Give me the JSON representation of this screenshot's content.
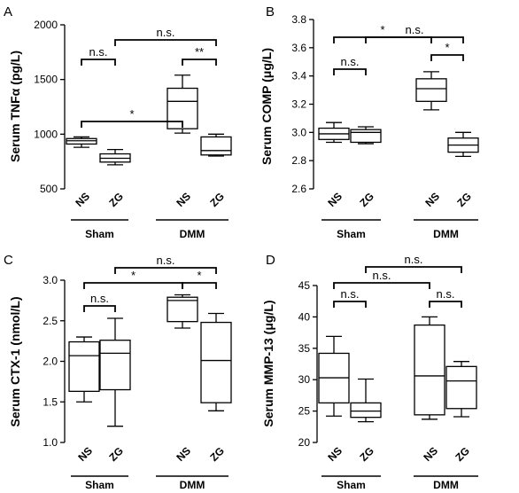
{
  "chart_data": [
    {
      "panel": "A",
      "type": "boxplot",
      "ylabel": "Serum TNFα (pg/L)",
      "ylim": [
        500,
        2000
      ],
      "yticks": [
        500,
        1000,
        1500,
        2000
      ],
      "categories": [
        "NS",
        "ZG",
        "NS",
        "ZG"
      ],
      "groups": [
        {
          "label": "Sham",
          "categories": [
            0,
            1
          ]
        },
        {
          "label": "DMM",
          "categories": [
            2,
            3
          ]
        }
      ],
      "boxes": [
        {
          "min": 880,
          "q1": 910,
          "median": 940,
          "q3": 960,
          "max": 975
        },
        {
          "min": 720,
          "q1": 745,
          "median": 780,
          "q3": 820,
          "max": 860
        },
        {
          "min": 1010,
          "q1": 1050,
          "median": 1300,
          "q3": 1420,
          "max": 1540
        },
        {
          "min": 800,
          "q1": 810,
          "median": 850,
          "q3": 975,
          "max": 1000
        }
      ],
      "comparisons": [
        {
          "from": 0,
          "to": 2,
          "label": "*",
          "level": 2
        },
        {
          "from": 1,
          "to": 3,
          "label": "n.s.",
          "level": 3
        },
        {
          "from": 2,
          "to": 3,
          "label": "**",
          "level": 2
        },
        {
          "from": 0,
          "to": 1,
          "label": "n.s.",
          "level": 1
        }
      ]
    },
    {
      "panel": "B",
      "type": "boxplot",
      "ylabel": "Serum COMP (μg/L)",
      "ylim": [
        2.6,
        3.8
      ],
      "yticks": [
        "2.6",
        "2.8",
        "3.0",
        "3.2",
        "3.4",
        "3.6",
        "3.8"
      ],
      "categories": [
        "NS",
        "ZG",
        "NS",
        "ZG"
      ],
      "groups": [
        {
          "label": "Sham",
          "categories": [
            0,
            1
          ]
        },
        {
          "label": "DMM",
          "categories": [
            2,
            3
          ]
        }
      ],
      "boxes": [
        {
          "min": 2.93,
          "q1": 2.95,
          "median": 2.99,
          "q3": 3.03,
          "max": 3.07
        },
        {
          "min": 2.92,
          "q1": 2.93,
          "median": 3.0,
          "q3": 3.02,
          "max": 3.04
        },
        {
          "min": 3.16,
          "q1": 3.22,
          "median": 3.31,
          "q3": 3.38,
          "max": 3.43
        },
        {
          "min": 2.83,
          "q1": 2.86,
          "median": 2.91,
          "q3": 2.96,
          "max": 3.0
        }
      ],
      "comparisons": [
        {
          "from": 0,
          "to": 1,
          "label": "n.s.",
          "level": 1
        },
        {
          "from": 0,
          "to": 2,
          "label": "*",
          "level": 2
        },
        {
          "from": 1,
          "to": 3,
          "label": "n.s.",
          "level": 3
        },
        {
          "from": 2,
          "to": 3,
          "label": "*",
          "level": 2
        }
      ]
    },
    {
      "panel": "C",
      "type": "boxplot",
      "ylabel": "Serum CTX-1 (nmol/L)",
      "ylim": [
        1.0,
        3.0
      ],
      "yticks": [
        "1.0",
        "1.5",
        "2.0",
        "2.5",
        "3.0"
      ],
      "categories": [
        "NS",
        "ZG",
        "NS",
        "ZG"
      ],
      "groups": [
        {
          "label": "Sham",
          "categories": [
            0,
            1
          ]
        },
        {
          "label": "DMM",
          "categories": [
            2,
            3
          ]
        }
      ],
      "boxes": [
        {
          "min": 1.5,
          "q1": 1.63,
          "median": 2.07,
          "q3": 2.24,
          "max": 2.3
        },
        {
          "min": 1.2,
          "q1": 1.65,
          "median": 2.1,
          "q3": 2.26,
          "max": 2.53
        },
        {
          "min": 2.41,
          "q1": 2.49,
          "median": 2.75,
          "q3": 2.79,
          "max": 2.82
        },
        {
          "min": 1.39,
          "q1": 1.49,
          "median": 2.01,
          "q3": 2.48,
          "max": 2.59
        }
      ],
      "comparisons": [
        {
          "from": 0,
          "to": 1,
          "label": "n.s.",
          "level": 1
        },
        {
          "from": 0,
          "to": 2,
          "label": "*",
          "level": 2
        },
        {
          "from": 1,
          "to": 3,
          "label": "n.s.",
          "level": 3
        },
        {
          "from": 2,
          "to": 3,
          "label": "*",
          "level": 2
        }
      ]
    },
    {
      "panel": "D",
      "type": "boxplot",
      "ylabel": "Serum MMP-13 (μg/L)",
      "ylim": [
        20,
        45
      ],
      "yticks": [
        "20",
        "25",
        "30",
        "35",
        "40",
        "45"
      ],
      "categories": [
        "NS",
        "ZG",
        "NS",
        "ZG"
      ],
      "groups": [
        {
          "label": "Sham",
          "categories": [
            0,
            1
          ]
        },
        {
          "label": "DMM",
          "categories": [
            2,
            3
          ]
        }
      ],
      "boxes": [
        {
          "min": 24.2,
          "q1": 26.3,
          "median": 30.3,
          "q3": 34.2,
          "max": 36.9
        },
        {
          "min": 23.3,
          "q1": 24.0,
          "median": 25.0,
          "q3": 26.3,
          "max": 30.1
        },
        {
          "min": 23.7,
          "q1": 24.4,
          "median": 30.6,
          "q3": 38.7,
          "max": 40.0
        },
        {
          "min": 24.1,
          "q1": 25.4,
          "median": 29.8,
          "q3": 32.1,
          "max": 32.9
        }
      ],
      "comparisons": [
        {
          "from": 0,
          "to": 1,
          "label": "n.s.",
          "level": 1
        },
        {
          "from": 0,
          "to": 2,
          "label": "n.s.",
          "level": 2
        },
        {
          "from": 1,
          "to": 3,
          "label": "n.s.",
          "level": 3
        },
        {
          "from": 2,
          "to": 3,
          "label": "n.s.",
          "level": 1
        }
      ]
    }
  ]
}
